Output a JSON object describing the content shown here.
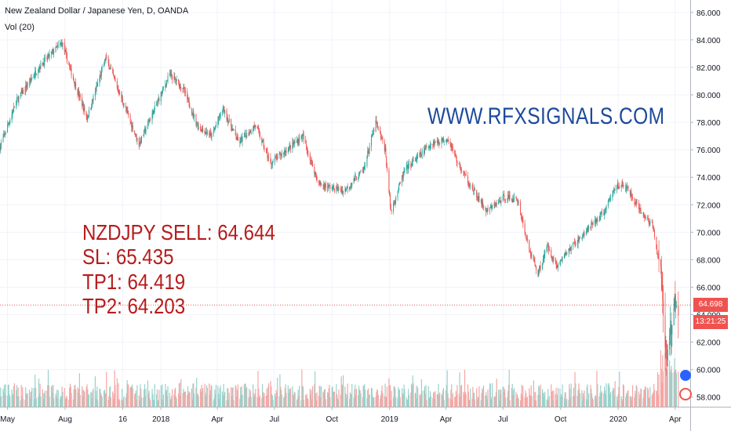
{
  "header": {
    "title": "New Zealand Dollar / Japanese Yen, D, OANDA",
    "volume_label": "Vol (20)"
  },
  "watermark": "WWW.RFXSIGNALS.COM",
  "signal": {
    "line1": "NZDJPY SELL: 64.644",
    "line2": "SL: 65.435",
    "line3": "TP1: 64.419",
    "line4": "TP2: 64.203"
  },
  "price_scale": {
    "current_price": "64.698",
    "countdown": "13:21:25"
  },
  "colors": {
    "up": "#26a69a",
    "down": "#ef5350",
    "up_volume": "#99d2cb",
    "down_volume": "#f5a6a4",
    "signal_text": "#b71c1c",
    "watermark": "#1d4a9c"
  },
  "chart_data": {
    "type": "candlestick",
    "symbol": "New Zealand Dollar / Japanese Yen, D, OANDA",
    "y_ticks": [
      "58.000",
      "60.000",
      "62.000",
      "64.000",
      "66.000",
      "68.000",
      "70.000",
      "72.000",
      "74.000",
      "76.000",
      "78.000",
      "80.000",
      "82.000",
      "84.000",
      "86.000"
    ],
    "y_tick_values": [
      58,
      60,
      62,
      64,
      66,
      68,
      70,
      72,
      74,
      76,
      78,
      80,
      82,
      84,
      86
    ],
    "ylim": [
      57.3,
      86.9
    ],
    "x_ticks": [
      "May",
      "Aug",
      "16",
      "2018",
      "Apr",
      "Jul",
      "Oct",
      "2019",
      "Apr",
      "Jul",
      "Oct",
      "2020",
      "Apr"
    ],
    "x_tick_dates": [
      "2017-05-01",
      "2017-08-01",
      "2017-11-01",
      "2018-01-01",
      "2018-04-01",
      "2018-07-01",
      "2018-10-01",
      "2019-01-01",
      "2019-04-01",
      "2019-07-01",
      "2019-10-01",
      "2020-01-01",
      "2020-04-01"
    ],
    "xlim": [
      "2017-04-19",
      "2020-04-25"
    ],
    "close_path": [
      [
        "2017-04-19",
        76.2
      ],
      [
        "2017-05-15",
        79.5
      ],
      [
        "2017-06-20",
        82.0
      ],
      [
        "2017-07-10",
        83.0
      ],
      [
        "2017-07-27",
        83.8
      ],
      [
        "2017-08-15",
        81.0
      ],
      [
        "2017-09-05",
        78.3
      ],
      [
        "2017-10-05",
        82.7
      ],
      [
        "2017-11-01",
        79.5
      ],
      [
        "2017-11-27",
        76.4
      ],
      [
        "2017-12-20",
        78.8
      ],
      [
        "2018-01-15",
        81.5
      ],
      [
        "2018-02-05",
        80.5
      ],
      [
        "2018-03-01",
        77.7
      ],
      [
        "2018-03-23",
        77.0
      ],
      [
        "2018-04-10",
        79.0
      ],
      [
        "2018-05-05",
        76.5
      ],
      [
        "2018-06-01",
        77.8
      ],
      [
        "2018-06-25",
        75.0
      ],
      [
        "2018-08-15",
        77.0
      ],
      [
        "2018-09-10",
        73.5
      ],
      [
        "2018-10-20",
        73.0
      ],
      [
        "2018-11-20",
        74.5
      ],
      [
        "2018-12-10",
        78.0
      ],
      [
        "2018-12-25",
        76.0
      ],
      [
        "2019-01-03",
        71.5
      ],
      [
        "2019-01-25",
        74.5
      ],
      [
        "2019-03-10",
        76.5
      ],
      [
        "2019-04-05",
        76.8
      ],
      [
        "2019-04-20",
        75.0
      ],
      [
        "2019-05-15",
        73.0
      ],
      [
        "2019-06-05",
        71.5
      ],
      [
        "2019-07-05",
        72.6
      ],
      [
        "2019-07-25",
        72.3
      ],
      [
        "2019-08-10",
        69.0
      ],
      [
        "2019-08-26",
        67.0
      ],
      [
        "2019-09-10",
        69.0
      ],
      [
        "2019-09-25",
        67.5
      ],
      [
        "2019-10-10",
        68.5
      ],
      [
        "2019-11-10",
        70.0
      ],
      [
        "2019-12-10",
        71.5
      ],
      [
        "2019-12-30",
        73.5
      ],
      [
        "2020-01-15",
        73.2
      ],
      [
        "2020-02-05",
        71.5
      ],
      [
        "2020-02-25",
        70.5
      ],
      [
        "2020-03-05",
        68.0
      ],
      [
        "2020-03-10",
        66.5
      ],
      [
        "2020-03-18",
        60.7
      ],
      [
        "2020-03-23",
        62.0
      ],
      [
        "2020-03-31",
        64.7
      ],
      [
        "2020-04-06",
        64.7
      ]
    ],
    "last_price": 64.698,
    "price_line": 64.698
  }
}
